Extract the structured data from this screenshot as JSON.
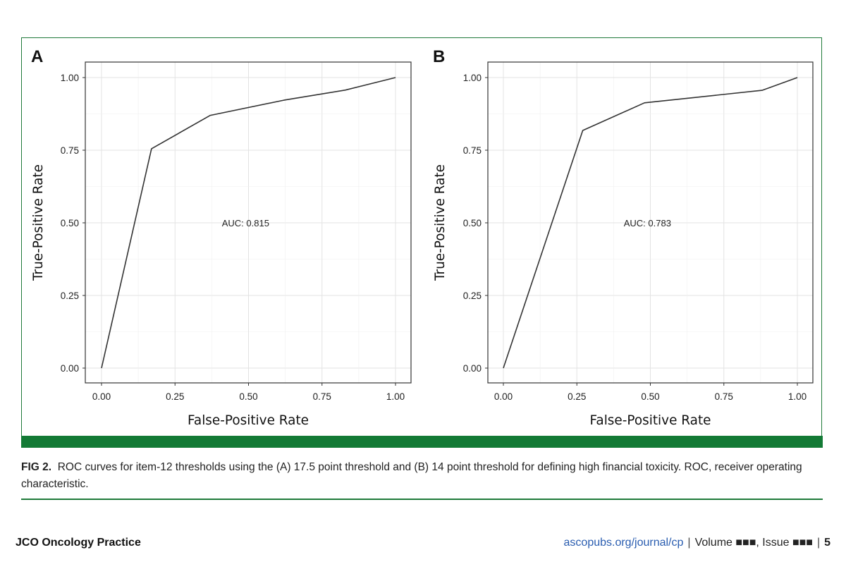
{
  "chart_data": [
    {
      "type": "line",
      "panel_label": "A",
      "xlabel": "False-Positive Rate",
      "ylabel": "True-Positive Rate",
      "xlim": [
        0,
        1
      ],
      "ylim": [
        0,
        1
      ],
      "xticks": [
        "0.00",
        "0.25",
        "0.50",
        "0.75",
        "1.00"
      ],
      "yticks": [
        "0.00",
        "0.25",
        "0.50",
        "0.75",
        "1.00"
      ],
      "grid": true,
      "annotation": "AUC: 0.815",
      "x": [
        0.0,
        0.17,
        0.37,
        0.62,
        0.83,
        1.0
      ],
      "y": [
        0.0,
        0.755,
        0.87,
        0.922,
        0.957,
        1.0
      ]
    },
    {
      "type": "line",
      "panel_label": "B",
      "xlabel": "False-Positive Rate",
      "ylabel": "True-Positive Rate",
      "xlim": [
        0,
        1
      ],
      "ylim": [
        0,
        1
      ],
      "xticks": [
        "0.00",
        "0.25",
        "0.50",
        "0.75",
        "1.00"
      ],
      "yticks": [
        "0.00",
        "0.25",
        "0.50",
        "0.75",
        "1.00"
      ],
      "grid": true,
      "annotation": "AUC: 0.783",
      "x": [
        0.0,
        0.27,
        0.48,
        0.88,
        1.0
      ],
      "y": [
        0.0,
        0.818,
        0.913,
        0.956,
        1.0
      ]
    }
  ],
  "caption": {
    "label": "FIG 2.",
    "text": "ROC curves for item-12 thresholds using the (A) 17.5 point threshold and (B) 14 point threshold for defining high financial toxicity. ROC, receiver operating characteristic."
  },
  "footer": {
    "journal": "JCO Oncology Practice",
    "url": "ascopubs.org/journal/cp",
    "volume": "Volume ■■■, Issue ■■■",
    "page": "5"
  },
  "colors": {
    "frame": "#1f7a3a",
    "bar": "#137a35",
    "line": "#333333",
    "grid": "#e3e3e3"
  }
}
